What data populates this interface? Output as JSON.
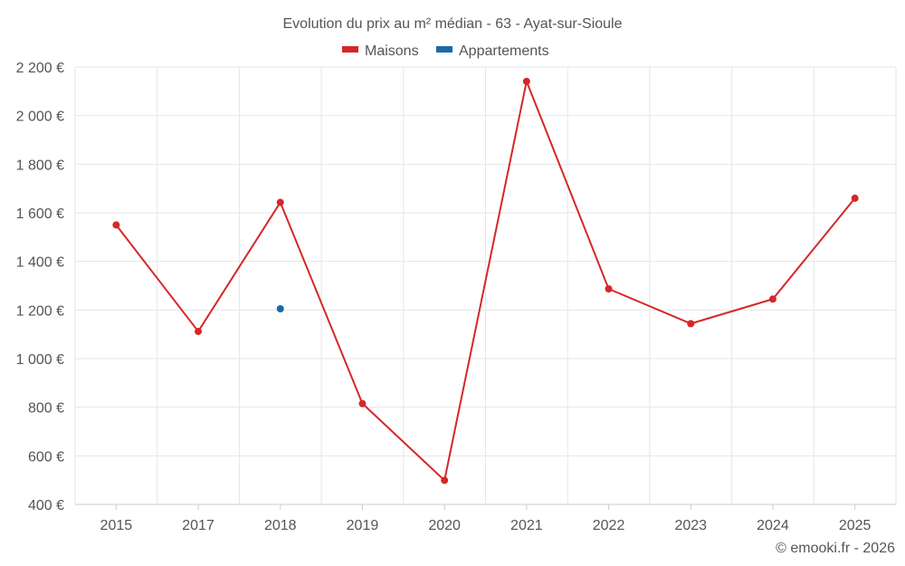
{
  "chart_data": {
    "type": "line",
    "title": "Evolution du prix au m² médian - 63 - Ayat-sur-Sioule",
    "categories": [
      "2015",
      "2017",
      "2018",
      "2019",
      "2020",
      "2021",
      "2022",
      "2023",
      "2024",
      "2025"
    ],
    "series": [
      {
        "name": "Maisons",
        "color": "#d62728",
        "values": [
          1550,
          1112,
          1643,
          815,
          499,
          2141,
          1287,
          1144,
          1245,
          1660
        ]
      },
      {
        "name": "Appartements",
        "color": "#1a6aa8",
        "values": [
          null,
          null,
          1205,
          null,
          null,
          null,
          null,
          null,
          null,
          null
        ]
      }
    ],
    "y_ticks": [
      400,
      600,
      800,
      1000,
      1200,
      1400,
      1600,
      1800,
      2000,
      2200
    ],
    "y_tick_labels": [
      "400 €",
      "600 €",
      "800 €",
      "1 000 €",
      "1 200 €",
      "1 400 €",
      "1 600 €",
      "1 800 €",
      "2 000 €",
      "2 200 €"
    ],
    "ylim": [
      400,
      2200
    ],
    "grid": true,
    "legend_position": "top-center",
    "credit": "© emooki.fr - 2026"
  }
}
